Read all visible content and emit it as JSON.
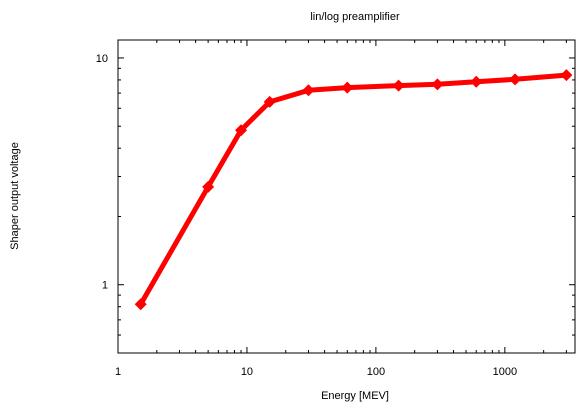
{
  "chart_data": {
    "type": "line",
    "title": "lin/log preamplifier",
    "xlabel": "Energy [MEV]",
    "ylabel": "Shaper output voltage",
    "xscale": "log",
    "yscale": "log",
    "xlim": [
      1,
      3500
    ],
    "ylim": [
      0.5,
      12
    ],
    "xticks": [
      {
        "value": 1,
        "label": "1"
      },
      {
        "value": 10,
        "label": "10"
      },
      {
        "value": 100,
        "label": "100"
      },
      {
        "value": 1000,
        "label": "1000"
      }
    ],
    "yticks": [
      {
        "value": 1,
        "label": "1"
      },
      {
        "value": 10,
        "label": "10"
      }
    ],
    "grid": false,
    "legend": "none",
    "series": [
      {
        "color": "#ff0000",
        "marker": "diamond",
        "x": [
          1.5,
          5,
          9,
          15,
          30,
          60,
          150,
          300,
          600,
          1200,
          3000
        ],
        "y": [
          0.82,
          2.7,
          4.8,
          6.4,
          7.2,
          7.4,
          7.55,
          7.65,
          7.85,
          8.05,
          8.4
        ]
      }
    ]
  }
}
